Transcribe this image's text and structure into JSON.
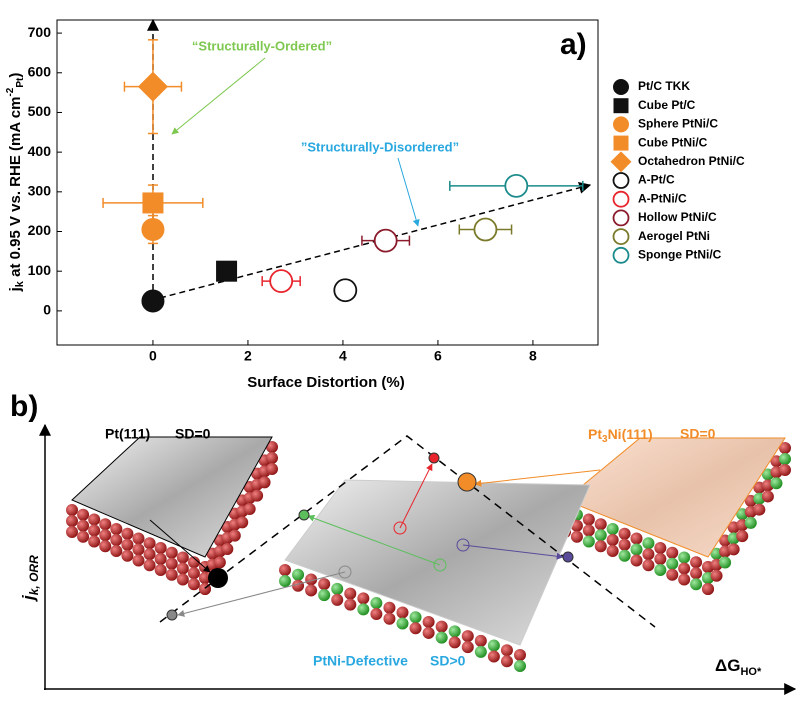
{
  "chart_data": {
    "type": "scatter",
    "label": "a)",
    "annotations": [
      "“Structurally-Ordered”",
      "”Structurally-Disordered”"
    ],
    "x_label": "Surface Distortion (%)",
    "y_label": {
      "main": "j",
      "main_sub": "k",
      "text": " at 0.95 V vs. RHE (mA cm",
      "sup": "-2",
      "sub": "Pt",
      "end": ")"
    },
    "xlim": [
      -2.02,
      9.37
    ],
    "xticks": [
      0,
      2,
      4,
      6,
      8
    ],
    "ylim": [
      -86,
      733
    ],
    "yticks": [
      0,
      100,
      200,
      300,
      400,
      500,
      600,
      700
    ],
    "series": [
      {
        "name": "Pt/C TKK",
        "color": "#111111",
        "marker": "circle",
        "filled": true,
        "x": [
          0
        ],
        "values": [
          25
        ]
      },
      {
        "name": "Cube Pt/C",
        "color": "#111111",
        "marker": "square",
        "filled": true,
        "x": [
          1.55
        ],
        "values": [
          100
        ],
        "xerr": [
          0.15
        ]
      },
      {
        "name": "Sphere PtNi/C",
        "color": "#f28c28",
        "marker": "circle",
        "filled": true,
        "x": [
          0
        ],
        "values": [
          205
        ],
        "yerr": [
          35
        ]
      },
      {
        "name": "Cube PtNi/C",
        "color": "#f28c28",
        "marker": "square",
        "filled": true,
        "x": [
          0
        ],
        "values": [
          272
        ],
        "xerr": [
          1.05
        ],
        "yerr": [
          45
        ]
      },
      {
        "name": "Octahedron PtNi/C",
        "color": "#f28c28",
        "marker": "diamond",
        "filled": true,
        "x": [
          0
        ],
        "values": [
          565
        ],
        "xerr": [
          0.6
        ],
        "yerr": [
          118
        ]
      },
      {
        "name": "A-Pt/C",
        "color": "#111111",
        "marker": "circle",
        "filled": false,
        "x": [
          4.05
        ],
        "values": [
          52
        ]
      },
      {
        "name": "A-PtNi/C",
        "color": "#e8242c",
        "marker": "circle",
        "filled": false,
        "x": [
          2.7
        ],
        "values": [
          75
        ],
        "xerr": [
          0.4
        ]
      },
      {
        "name": "Hollow PtNi/C",
        "color": "#8b1a2b",
        "marker": "circle",
        "filled": false,
        "x": [
          4.9
        ],
        "values": [
          177
        ],
        "xerr": [
          0.5
        ]
      },
      {
        "name": "Aerogel PtNi",
        "color": "#7a7a2a",
        "marker": "circle",
        "filled": false,
        "x": [
          7.0
        ],
        "values": [
          205
        ],
        "xerr": [
          0.55
        ]
      },
      {
        "name": "Sponge PtNi/C",
        "color": "#1a8a8a",
        "marker": "circle",
        "filled": false,
        "x": [
          7.65
        ],
        "values": [
          315
        ],
        "xerr": [
          1.4
        ]
      }
    ]
  },
  "diagram": {
    "label": "b)",
    "left": {
      "title": "Pt(111)",
      "sd": "SD=0"
    },
    "right": {
      "title": "Pt",
      "title_sub": "3",
      "title_end": "Ni(111)",
      "sd": "SD=0"
    },
    "center": {
      "title": "PtNi-Defective",
      "sd": "SD>0"
    },
    "y_axis": {
      "text": "j",
      "sub": "k, ORR"
    },
    "x_axis": {
      "text": "ΔG",
      "sub": "HO*"
    }
  }
}
